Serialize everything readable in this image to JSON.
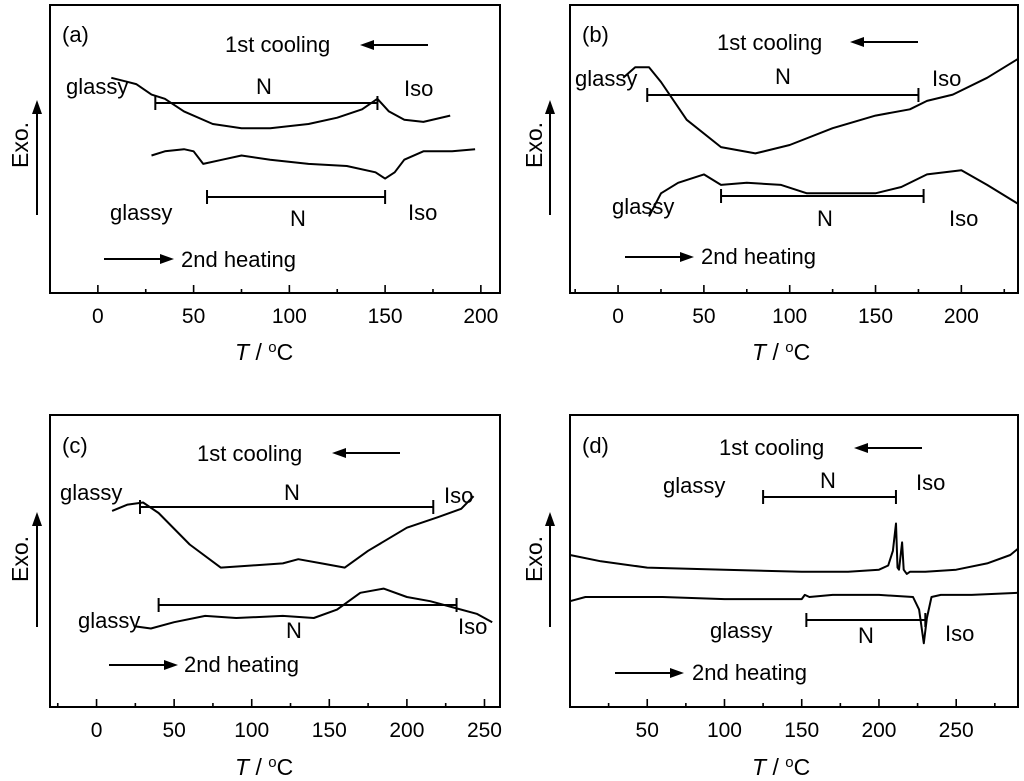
{
  "chart_data": [
    {
      "type": "line",
      "panel_label": "(a)",
      "xlabel_var": "T",
      "xlabel_unit": " / °C",
      "ylabel": "Exo.",
      "xlim": [
        -25,
        210
      ],
      "xticks": [
        0,
        50,
        100,
        150,
        200
      ],
      "cooling_label": "1st cooling",
      "heating_label": "2nd heating",
      "cooling_phases": {
        "glassy": "glassy",
        "N": "N",
        "iso": "Iso",
        "range": [
          30,
          146
        ]
      },
      "heating_phases": {
        "glassy": "glassy",
        "N": "N",
        "iso": "Iso",
        "range": [
          57,
          150
        ]
      },
      "series": [
        {
          "name": "1st cooling",
          "x": [
            7,
            20,
            28,
            35,
            45,
            60,
            75,
            90,
            110,
            125,
            138,
            146,
            152,
            160,
            170,
            184
          ],
          "y": [
            0.82,
            0.79,
            0.74,
            0.72,
            0.66,
            0.6,
            0.58,
            0.58,
            0.6,
            0.63,
            0.67,
            0.72,
            0.66,
            0.62,
            0.61,
            0.64
          ]
        },
        {
          "name": "2nd heating",
          "x": [
            28,
            35,
            45,
            50,
            55,
            65,
            75,
            90,
            110,
            130,
            145,
            150,
            155,
            160,
            170,
            185,
            197
          ],
          "y": [
            0.45,
            0.47,
            0.48,
            0.47,
            0.41,
            0.43,
            0.45,
            0.43,
            0.41,
            0.4,
            0.37,
            0.34,
            0.37,
            0.43,
            0.47,
            0.47,
            0.48
          ]
        }
      ]
    },
    {
      "type": "line",
      "panel_label": "(b)",
      "xlabel_var": "T",
      "xlabel_unit": " / °C",
      "ylabel": "Exo.",
      "xlim": [
        -28,
        233
      ],
      "xticks": [
        0,
        50,
        100,
        150,
        200
      ],
      "cooling_label": "1st cooling",
      "heating_label": "2nd heating",
      "cooling_phases": {
        "glassy": "glassy",
        "N": "N",
        "iso": "Iso",
        "range": [
          17,
          175
        ]
      },
      "heating_phases": {
        "glassy": "glassy",
        "N": "N",
        "iso": "Iso",
        "range": [
          60,
          178
        ]
      },
      "series": [
        {
          "name": "1st cooling",
          "x": [
            3,
            10,
            18,
            25,
            40,
            60,
            80,
            100,
            125,
            150,
            170,
            180,
            195,
            215,
            233
          ],
          "y": [
            0.82,
            0.87,
            0.87,
            0.8,
            0.62,
            0.49,
            0.46,
            0.5,
            0.58,
            0.64,
            0.67,
            0.71,
            0.74,
            0.82,
            0.91
          ]
        },
        {
          "name": "2nd heating",
          "x": [
            18,
            25,
            35,
            50,
            60,
            75,
            95,
            110,
            130,
            150,
            165,
            180,
            200,
            215,
            233
          ],
          "y": [
            0.16,
            0.27,
            0.32,
            0.36,
            0.31,
            0.32,
            0.31,
            0.27,
            0.27,
            0.27,
            0.3,
            0.36,
            0.38,
            0.31,
            0.22
          ]
        }
      ]
    },
    {
      "type": "line",
      "panel_label": "(c)",
      "xlabel_var": "T",
      "xlabel_unit": " / °C",
      "ylabel": "Exo.",
      "xlim": [
        -30,
        260
      ],
      "xticks": [
        0,
        50,
        100,
        150,
        200,
        250
      ],
      "cooling_label": "1st cooling",
      "heating_label": "2nd heating",
      "cooling_phases": {
        "glassy": "glassy",
        "N": "N",
        "iso": "Iso",
        "range": [
          28,
          217
        ]
      },
      "heating_phases": {
        "glassy": "glassy",
        "N": "N",
        "iso": "Iso",
        "range": [
          40,
          232
        ]
      },
      "series": [
        {
          "name": "1st cooling",
          "x": [
            10,
            20,
            30,
            40,
            60,
            80,
            100,
            120,
            130,
            145,
            160,
            175,
            200,
            220,
            235,
            243
          ],
          "y": [
            0.71,
            0.74,
            0.75,
            0.7,
            0.55,
            0.44,
            0.45,
            0.46,
            0.48,
            0.46,
            0.44,
            0.52,
            0.63,
            0.68,
            0.72,
            0.78
          ]
        },
        {
          "name": "2nd heating",
          "x": [
            25,
            35,
            50,
            70,
            90,
            120,
            140,
            155,
            170,
            185,
            200,
            215,
            230,
            245,
            255
          ],
          "y": [
            0.16,
            0.15,
            0.18,
            0.21,
            0.2,
            0.21,
            0.2,
            0.24,
            0.32,
            0.34,
            0.3,
            0.28,
            0.25,
            0.22,
            0.18
          ]
        }
      ]
    },
    {
      "type": "line",
      "panel_label": "(d)",
      "xlabel_var": "T",
      "xlabel_unit": " / °C",
      "ylabel": "Exo.",
      "xlim": [
        0,
        290
      ],
      "xticks": [
        50,
        100,
        150,
        200,
        250
      ],
      "cooling_label": "1st cooling",
      "heating_label": "2nd heating",
      "cooling_phases": {
        "glassy": "glassy",
        "N": "N",
        "iso": "Iso",
        "range": [
          125,
          211
        ]
      },
      "heating_phases": {
        "glassy": "glassy",
        "N": "N",
        "iso": "Iso",
        "range": [
          153,
          230
        ]
      },
      "series": [
        {
          "name": "1st cooling",
          "x": [
            0,
            20,
            50,
            100,
            150,
            180,
            200,
            206,
            209,
            211,
            212,
            213,
            215,
            216,
            217,
            218,
            220,
            230,
            250,
            270,
            285,
            290
          ],
          "y": [
            0.5,
            0.47,
            0.44,
            0.43,
            0.42,
            0.42,
            0.43,
            0.45,
            0.52,
            0.65,
            0.44,
            0.43,
            0.56,
            0.43,
            0.42,
            0.41,
            0.42,
            0.42,
            0.43,
            0.46,
            0.5,
            0.53
          ]
        },
        {
          "name": "2nd heating",
          "x": [
            0,
            10,
            30,
            60,
            100,
            130,
            150,
            152,
            155,
            170,
            200,
            222,
            226,
            229,
            231,
            234,
            240,
            260,
            290
          ],
          "y": [
            0.28,
            0.3,
            0.3,
            0.3,
            0.29,
            0.29,
            0.29,
            0.31,
            0.3,
            0.31,
            0.31,
            0.3,
            0.24,
            0.08,
            0.2,
            0.3,
            0.31,
            0.31,
            0.32
          ]
        }
      ]
    }
  ]
}
